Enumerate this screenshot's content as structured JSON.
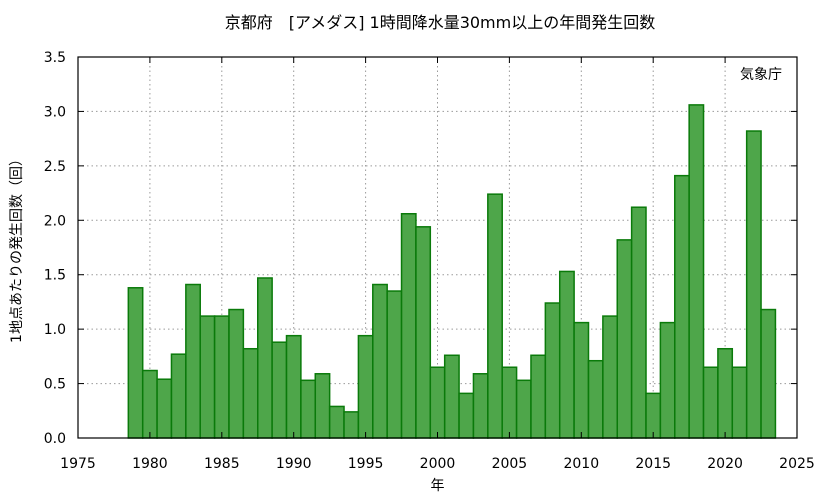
{
  "chart_data": {
    "type": "bar",
    "title": "京都府　[アメダス] 1時間降水量30mm以上の年間発生回数",
    "xlabel": "年",
    "ylabel": "1地点あたりの発生回数（回）",
    "source_label": "気象庁",
    "xlim": [
      1975,
      2025
    ],
    "ylim": [
      0,
      3.5
    ],
    "x_ticks": [
      1975,
      1980,
      1985,
      1990,
      1995,
      2000,
      2005,
      2010,
      2015,
      2020,
      2025
    ],
    "y_ticks": [
      "0.0",
      "0.5",
      "1.0",
      "1.5",
      "2.0",
      "2.5",
      "3.0",
      "3.5"
    ],
    "grid": true,
    "x": [
      1979,
      1980,
      1981,
      1982,
      1983,
      1984,
      1985,
      1986,
      1987,
      1988,
      1989,
      1990,
      1991,
      1992,
      1993,
      1994,
      1995,
      1996,
      1997,
      1998,
      1999,
      2000,
      2001,
      2002,
      2003,
      2004,
      2005,
      2006,
      2007,
      2008,
      2009,
      2010,
      2011,
      2012,
      2013,
      2014,
      2015,
      2016,
      2017,
      2018,
      2019,
      2020,
      2021,
      2022,
      2023
    ],
    "values": [
      1.38,
      0.62,
      0.54,
      0.77,
      1.41,
      1.12,
      1.12,
      1.18,
      0.82,
      1.47,
      0.88,
      0.94,
      0.53,
      0.59,
      0.29,
      0.24,
      0.94,
      1.41,
      1.35,
      2.06,
      1.94,
      0.65,
      0.76,
      0.41,
      0.59,
      2.24,
      0.65,
      0.53,
      0.76,
      1.24,
      1.53,
      1.06,
      0.71,
      1.12,
      1.82,
      2.12,
      0.41,
      1.06,
      2.41,
      3.06,
      0.65,
      0.82,
      0.65,
      2.82,
      1.18
    ],
    "colors": {
      "bar_fill": "#4ea64a",
      "bar_edge": "#0a7a0a"
    }
  }
}
